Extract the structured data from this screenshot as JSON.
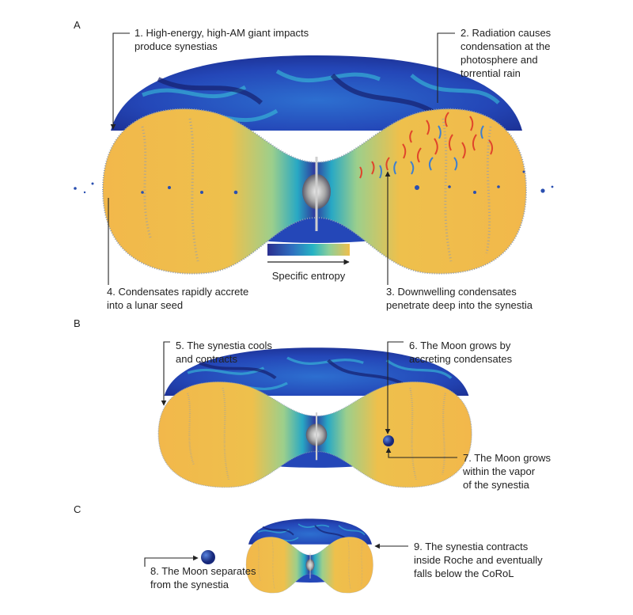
{
  "panels": {
    "a": "A",
    "b": "B",
    "c": "C"
  },
  "labels": {
    "l1": [
      "1. High-energy, high-AM giant impacts",
      "produce synestias"
    ],
    "l2": [
      "2. Radiation causes",
      "condensation at the",
      "photosphere and",
      "torrential rain"
    ],
    "l3": [
      "3. Downwelling condensates",
      "penetrate deep into the synestia"
    ],
    "l4": [
      "4. Condensates rapidly accrete",
      "into a lunar seed"
    ],
    "l5": [
      "5. The synestia cools",
      "and contracts"
    ],
    "l6": [
      "6. The Moon grows by",
      "accreting condensates"
    ],
    "l7": [
      "7. The Moon grows",
      "within the vapor",
      "of the synestia"
    ],
    "l8": [
      "8. The Moon separates",
      "from the synestia"
    ],
    "l9": [
      "9. The synestia contracts",
      "inside Roche and eventually",
      "falls below the CoRoL"
    ]
  },
  "colorbar": {
    "label": "Specific entropy",
    "colors": [
      "#2b2f8f",
      "#2f6fc0",
      "#26b3c4",
      "#8ccf9a",
      "#f0bf4c"
    ]
  },
  "colors": {
    "vapor_blue": "#1f3fae",
    "condensate_yellow": "#f2b84b",
    "rain_red": "#e0452b",
    "moon_blue": "#2a4fb0"
  }
}
